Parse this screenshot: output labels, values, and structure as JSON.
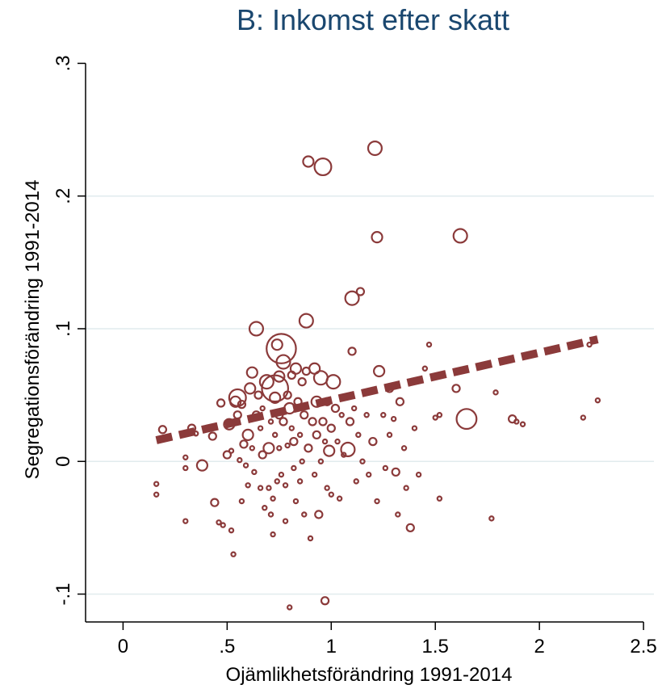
{
  "colors": {
    "title": "#1a476f",
    "marker": "#8b3a3a",
    "fit_line": "#8b3a3a",
    "grid": "#e1ebee",
    "axis": "#000000",
    "background": "#ffffff"
  },
  "chart_data": {
    "type": "scatter",
    "title": "B: Inkomst efter skatt",
    "xlabel": "Ojämlikhetsförändring 1991-2014",
    "ylabel": "Segregationsförändring 1991-2014",
    "xlim": [
      -0.18,
      2.55
    ],
    "ylim": [
      -0.121,
      0.31
    ],
    "xticks": [
      0,
      0.5,
      1,
      1.5,
      2,
      2.5
    ],
    "xtick_labels": [
      "0",
      ".5",
      "1",
      "1.5",
      "2",
      "2.5"
    ],
    "yticks": [
      -0.1,
      0,
      0.1,
      0.2,
      0.3
    ],
    "ytick_labels": [
      "-.1",
      "0",
      ".1",
      ".2",
      ".3"
    ],
    "grid": "horizontal",
    "marker_style": "hollow circle, size proportional to weight",
    "fit_line": {
      "style": "dashed",
      "x": [
        0.16,
        2.28
      ],
      "y": [
        0.016,
        0.092
      ]
    },
    "points": [
      [
        0.16,
        -0.017,
        1
      ],
      [
        0.16,
        -0.025,
        1
      ],
      [
        0.19,
        0.024,
        2
      ],
      [
        0.3,
        -0.045,
        1
      ],
      [
        0.3,
        0.003,
        1
      ],
      [
        0.3,
        -0.005,
        1
      ],
      [
        0.33,
        0.025,
        2
      ],
      [
        0.35,
        0.021,
        1
      ],
      [
        0.38,
        -0.003,
        3
      ],
      [
        0.43,
        0.019,
        2
      ],
      [
        0.44,
        -0.031,
        2
      ],
      [
        0.46,
        -0.046,
        1
      ],
      [
        0.47,
        0.044,
        2
      ],
      [
        0.48,
        -0.048,
        1
      ],
      [
        0.5,
        0.005,
        2
      ],
      [
        0.51,
        0.028,
        3
      ],
      [
        0.52,
        -0.052,
        1
      ],
      [
        0.52,
        0.008,
        1
      ],
      [
        0.53,
        -0.07,
        1
      ],
      [
        0.54,
        0.045,
        3
      ],
      [
        0.54,
        0.03,
        1
      ],
      [
        0.55,
        0.048,
        5
      ],
      [
        0.55,
        0.035,
        2
      ],
      [
        0.56,
        0.001,
        1
      ],
      [
        0.57,
        -0.03,
        1
      ],
      [
        0.57,
        0.043,
        2
      ],
      [
        0.58,
        0.013,
        2
      ],
      [
        0.59,
        -0.003,
        1
      ],
      [
        0.6,
        0.02,
        3
      ],
      [
        0.6,
        -0.018,
        1
      ],
      [
        0.61,
        0.055,
        3
      ],
      [
        0.62,
        0.067,
        3
      ],
      [
        0.62,
        0.01,
        1
      ],
      [
        0.63,
        -0.008,
        1
      ],
      [
        0.64,
        0.035,
        2
      ],
      [
        0.64,
        0.1,
        4
      ],
      [
        0.65,
        0.05,
        2
      ],
      [
        0.66,
        0.025,
        1
      ],
      [
        0.66,
        -0.02,
        1
      ],
      [
        0.67,
        0.04,
        1
      ],
      [
        0.67,
        0.005,
        2
      ],
      [
        0.68,
        -0.035,
        1
      ],
      [
        0.69,
        0.06,
        4
      ],
      [
        0.7,
        0.01,
        3
      ],
      [
        0.7,
        -0.02,
        1
      ],
      [
        0.71,
        0.03,
        1
      ],
      [
        0.71,
        -0.04,
        1
      ],
      [
        0.72,
        -0.055,
        1
      ],
      [
        0.72,
        -0.028,
        1
      ],
      [
        0.73,
        0.055,
        8
      ],
      [
        0.73,
        0.048,
        3
      ],
      [
        0.73,
        0.02,
        1
      ],
      [
        0.74,
        0.088,
        3
      ],
      [
        0.74,
        -0.015,
        1
      ],
      [
        0.75,
        0.035,
        2
      ],
      [
        0.75,
        0.01,
        1
      ],
      [
        0.75,
        0.064,
        3
      ],
      [
        0.76,
        0.085,
        9
      ],
      [
        0.76,
        -0.01,
        1
      ],
      [
        0.77,
        0.075,
        4
      ],
      [
        0.77,
        0.03,
        2
      ],
      [
        0.78,
        -0.018,
        1
      ],
      [
        0.78,
        -0.045,
        1
      ],
      [
        0.79,
        0.05,
        2
      ],
      [
        0.79,
        0.012,
        1
      ],
      [
        0.8,
        0.04,
        3
      ],
      [
        0.8,
        -0.11,
        1
      ],
      [
        0.81,
        0.065,
        2
      ],
      [
        0.81,
        0.025,
        1
      ],
      [
        0.82,
        0.015,
        2
      ],
      [
        0.82,
        -0.005,
        1
      ],
      [
        0.83,
        0.07,
        3
      ],
      [
        0.83,
        -0.03,
        1
      ],
      [
        0.84,
        0.045,
        2
      ],
      [
        0.85,
        0.02,
        1
      ],
      [
        0.85,
        -0.015,
        1
      ],
      [
        0.86,
        0.06,
        2
      ],
      [
        0.86,
        0.0,
        1
      ],
      [
        0.87,
        0.035,
        2
      ],
      [
        0.87,
        -0.04,
        1
      ],
      [
        0.88,
        0.106,
        4
      ],
      [
        0.88,
        0.068,
        2
      ],
      [
        0.89,
        0.226,
        3
      ],
      [
        0.89,
        0.01,
        2
      ],
      [
        0.9,
        -0.058,
        1
      ],
      [
        0.91,
        0.03,
        2
      ],
      [
        0.92,
        0.07,
        3
      ],
      [
        0.92,
        -0.01,
        1
      ],
      [
        0.93,
        0.045,
        3
      ],
      [
        0.93,
        0.02,
        2
      ],
      [
        0.94,
        -0.04,
        2
      ],
      [
        0.95,
        0.063,
        4
      ],
      [
        0.95,
        0.0,
        1
      ],
      [
        0.96,
        0.222,
        5
      ],
      [
        0.96,
        0.03,
        2
      ],
      [
        0.97,
        0.015,
        1
      ],
      [
        0.97,
        -0.105,
        2
      ],
      [
        0.98,
        0.045,
        2
      ],
      [
        0.98,
        -0.02,
        1
      ],
      [
        0.99,
        0.008,
        3
      ],
      [
        1.0,
        0.025,
        2
      ],
      [
        1.0,
        -0.025,
        1
      ],
      [
        1.01,
        0.06,
        4
      ],
      [
        1.02,
        0.04,
        2
      ],
      [
        1.03,
        0.015,
        1
      ],
      [
        1.04,
        -0.028,
        1
      ],
      [
        1.05,
        0.035,
        1
      ],
      [
        1.06,
        0.005,
        1
      ],
      [
        1.08,
        0.009,
        4
      ],
      [
        1.09,
        0.03,
        2
      ],
      [
        1.1,
        0.083,
        2
      ],
      [
        1.1,
        0.123,
        4
      ],
      [
        1.11,
        0.04,
        1
      ],
      [
        1.12,
        -0.015,
        1
      ],
      [
        1.13,
        0.02,
        1
      ],
      [
        1.14,
        0.128,
        2
      ],
      [
        1.15,
        0.0,
        1
      ],
      [
        1.17,
        0.035,
        1
      ],
      [
        1.18,
        -0.01,
        1
      ],
      [
        1.2,
        0.015,
        2
      ],
      [
        1.21,
        0.236,
        4
      ],
      [
        1.22,
        0.169,
        3
      ],
      [
        1.22,
        -0.03,
        1
      ],
      [
        1.23,
        0.068,
        3
      ],
      [
        1.25,
        0.035,
        1
      ],
      [
        1.26,
        -0.005,
        1
      ],
      [
        1.28,
        0.055,
        2
      ],
      [
        1.28,
        0.02,
        1
      ],
      [
        1.3,
        0.032,
        1
      ],
      [
        1.31,
        -0.008,
        2
      ],
      [
        1.32,
        -0.04,
        1
      ],
      [
        1.33,
        0.045,
        2
      ],
      [
        1.35,
        0.01,
        1
      ],
      [
        1.36,
        -0.02,
        1
      ],
      [
        1.38,
        -0.05,
        2
      ],
      [
        1.4,
        0.025,
        1
      ],
      [
        1.42,
        -0.01,
        1
      ],
      [
        1.45,
        0.07,
        1
      ],
      [
        1.47,
        0.088,
        1
      ],
      [
        1.5,
        0.033,
        1
      ],
      [
        1.52,
        0.035,
        1
      ],
      [
        1.52,
        -0.028,
        1
      ],
      [
        1.6,
        0.055,
        2
      ],
      [
        1.62,
        0.17,
        4
      ],
      [
        1.65,
        0.032,
        6
      ],
      [
        1.77,
        -0.043,
        1
      ],
      [
        1.79,
        0.052,
        1
      ],
      [
        1.87,
        0.032,
        2
      ],
      [
        1.89,
        0.03,
        1
      ],
      [
        1.92,
        0.028,
        1
      ],
      [
        2.21,
        0.033,
        1
      ],
      [
        2.24,
        0.088,
        1
      ],
      [
        2.28,
        0.046,
        1
      ]
    ]
  }
}
